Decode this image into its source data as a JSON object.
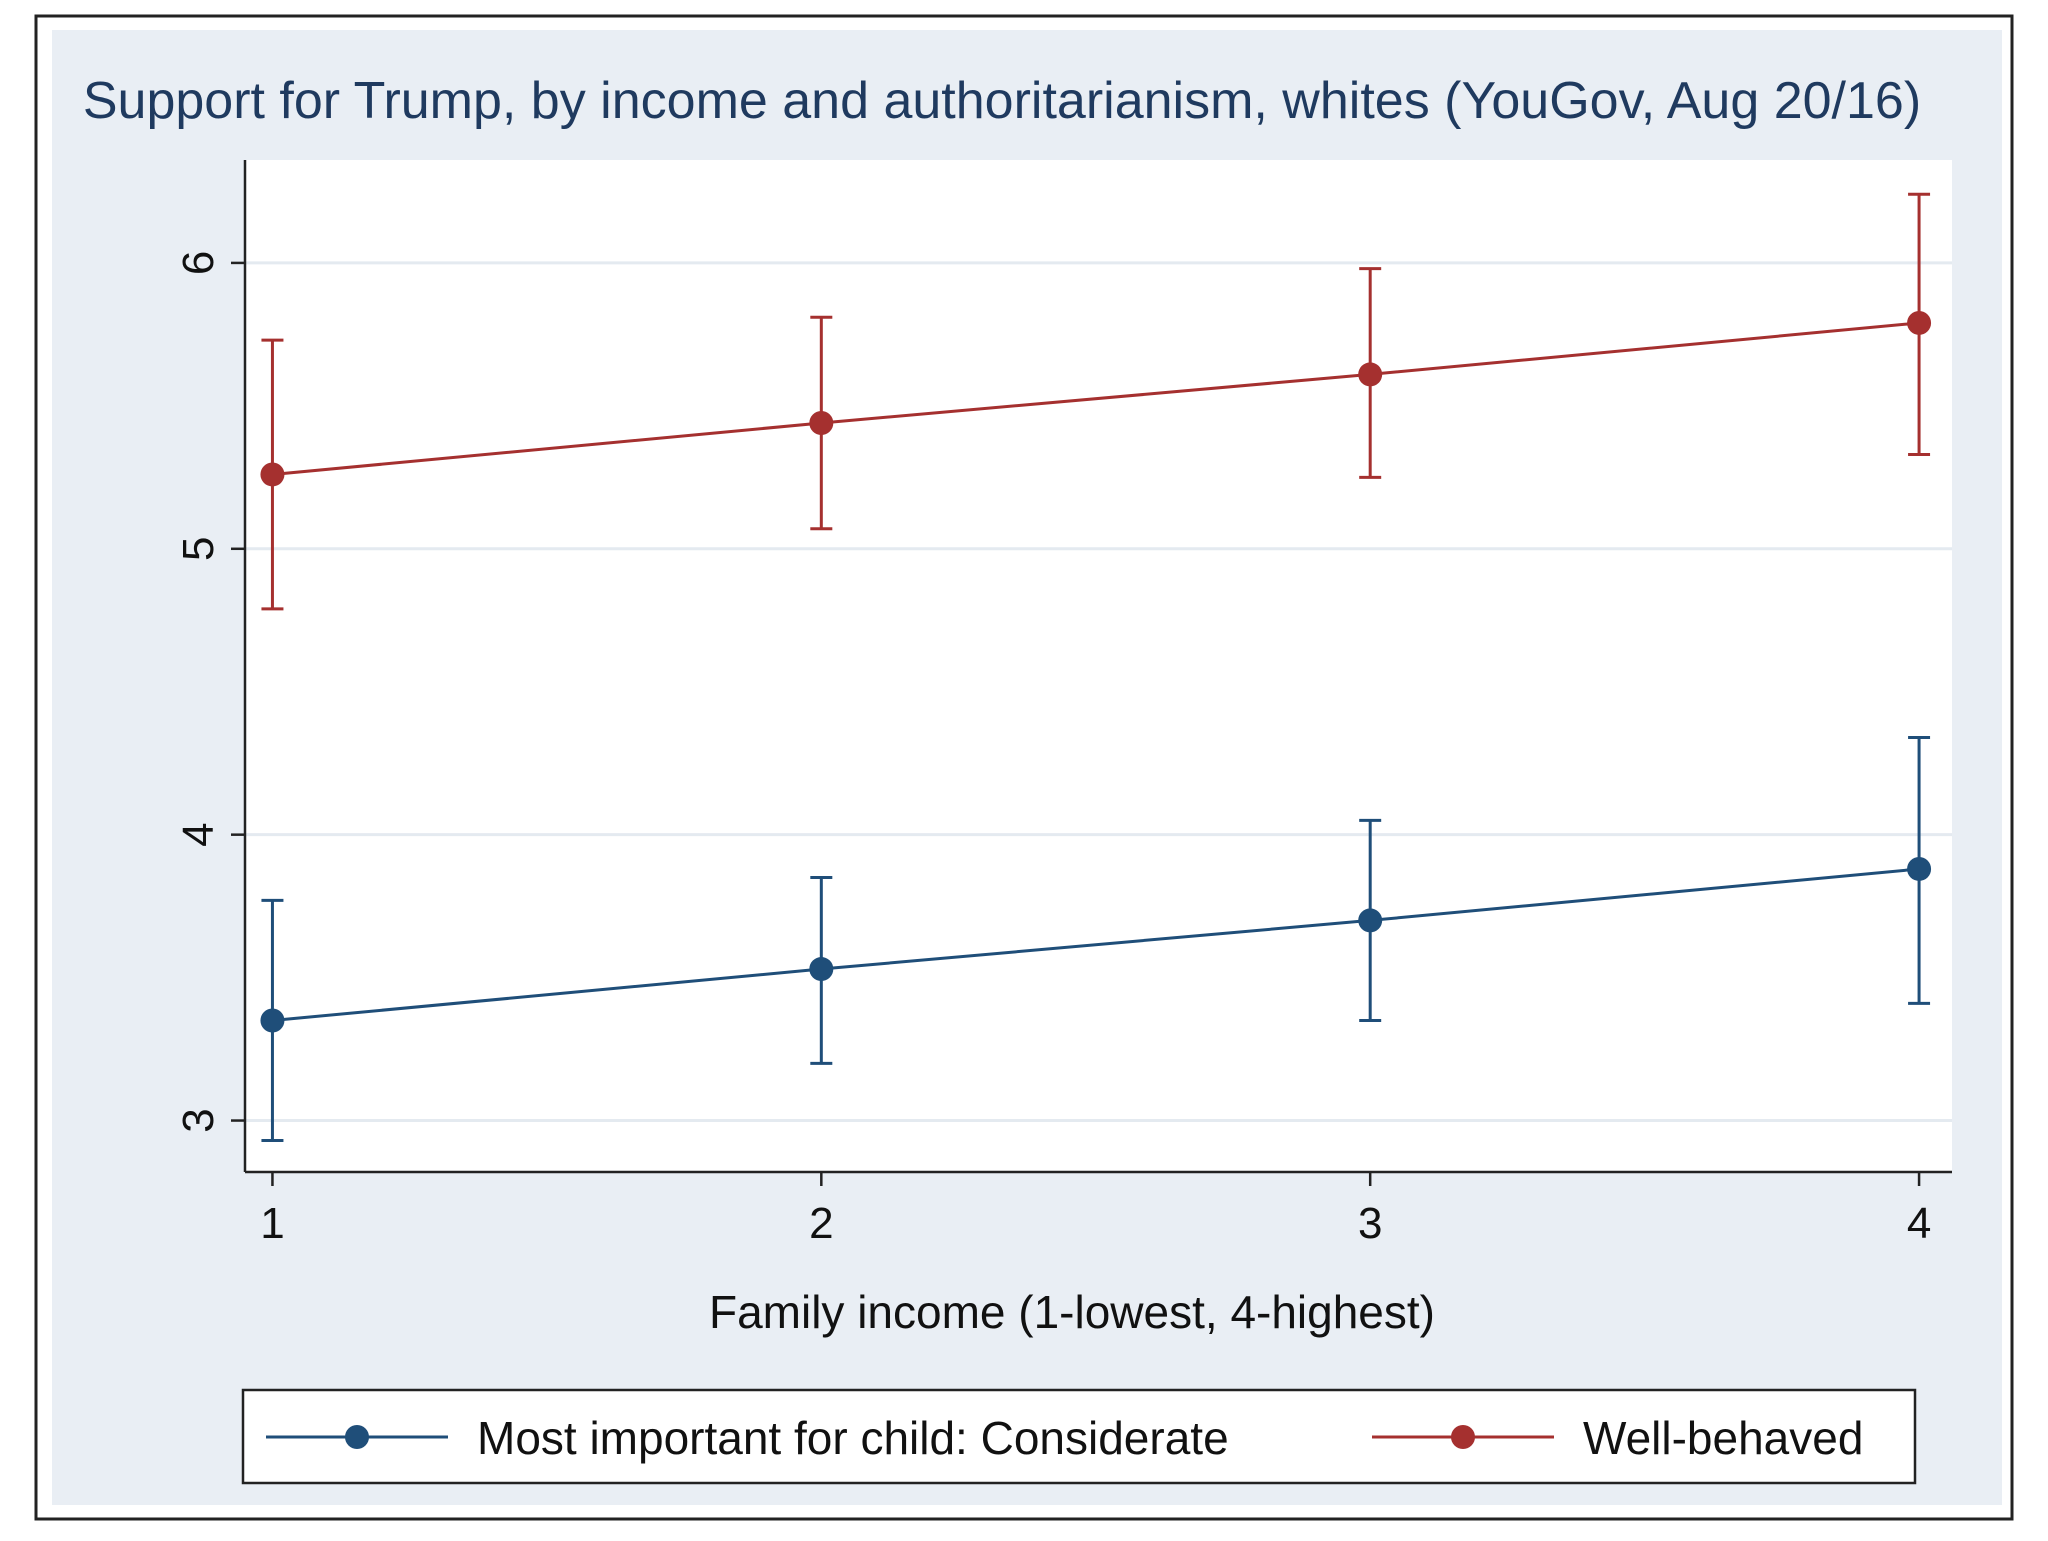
{
  "chart_data": {
    "type": "line",
    "title": "Support for Trump, by income and authoritarianism, whites (YouGov, Aug 20/16)",
    "xlabel": "Family income (1-lowest, 4-highest)",
    "ylabel": "",
    "x": [
      1,
      2,
      3,
      4
    ],
    "x_tick_labels": [
      "1",
      "2",
      "3",
      "4"
    ],
    "y_ticks": [
      3,
      4,
      5,
      6
    ],
    "y_tick_labels": [
      "3",
      "4",
      "5",
      "6"
    ],
    "xlim": [
      0.95,
      4.06
    ],
    "ylim": [
      2.82,
      6.36
    ],
    "grid": true,
    "legend_position": "bottom",
    "series": [
      {
        "name": "Most important for child: Considerate",
        "color": "#1f4e79",
        "values": [
          3.35,
          3.53,
          3.7,
          3.88
        ],
        "ci_low": [
          2.93,
          3.2,
          3.35,
          3.41
        ],
        "ci_high": [
          3.77,
          3.85,
          4.05,
          4.34
        ]
      },
      {
        "name": "Well-behaved",
        "color": "#a5302f",
        "values": [
          5.26,
          5.44,
          5.61,
          5.79
        ],
        "ci_low": [
          4.79,
          5.07,
          5.25,
          5.33
        ],
        "ci_high": [
          5.73,
          5.81,
          5.98,
          6.24
        ]
      }
    ],
    "colors": {
      "outer_background": "#ffffff",
      "panel_background": "#e9eef4",
      "plot_background": "#ffffff",
      "grid": "#e4eaf0",
      "axis": "#222222",
      "title": "#1f3a5f",
      "text": "#111111"
    }
  }
}
